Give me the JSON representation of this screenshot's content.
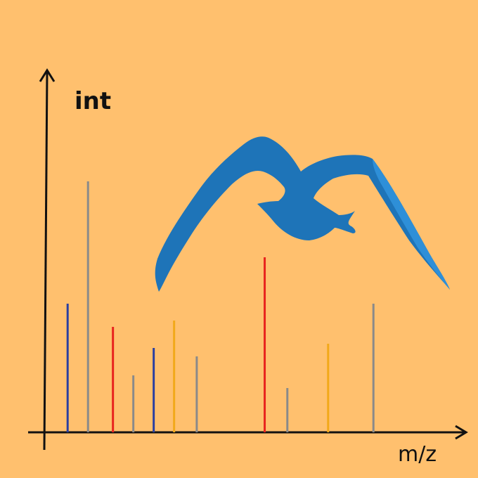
{
  "colors": {
    "background": "#FFC06E",
    "axis": "#111111",
    "bird": "#1E74B8",
    "bird_highlight": "#2E8FD8",
    "blue": "#2B3FA0",
    "gray": "#8A8A8A",
    "red": "#E8231E",
    "orange": "#F2A91A"
  },
  "illustration": {
    "icon": "flying-bird-icon"
  },
  "chart_data": {
    "type": "bar",
    "title": "",
    "xlabel": "m/z",
    "ylabel": "int",
    "grid": false,
    "xlim": [
      0,
      180
    ],
    "ylim": [
      0,
      170
    ],
    "x_ticks": [],
    "y_ticks": [],
    "peaks": [
      {
        "x": 10,
        "y": 61,
        "color": "blue"
      },
      {
        "x": 19,
        "y": 119,
        "color": "gray"
      },
      {
        "x": 30,
        "y": 50,
        "color": "red"
      },
      {
        "x": 39,
        "y": 27,
        "color": "gray"
      },
      {
        "x": 48,
        "y": 40,
        "color": "blue"
      },
      {
        "x": 57,
        "y": 53,
        "color": "orange"
      },
      {
        "x": 67,
        "y": 36,
        "color": "gray"
      },
      {
        "x": 97,
        "y": 83,
        "color": "red"
      },
      {
        "x": 107,
        "y": 21,
        "color": "gray"
      },
      {
        "x": 125,
        "y": 42,
        "color": "orange"
      },
      {
        "x": 145,
        "y": 61,
        "color": "gray"
      }
    ]
  }
}
